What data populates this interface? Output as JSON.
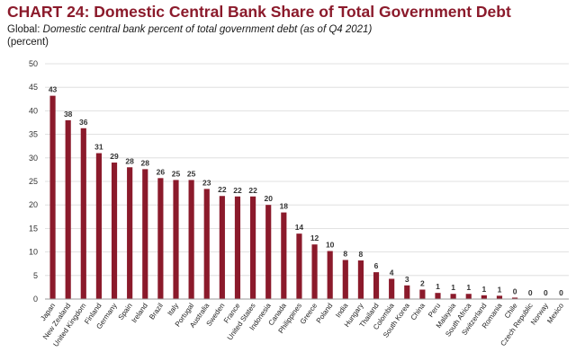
{
  "header": {
    "title": "CHART 24: Domestic Central Bank Share of Total Government Debt",
    "subtitle_prefix": "Global: ",
    "subtitle_italic": "Domestic central bank percent of total government debt (as of Q4 2021)",
    "unit": "(percent)"
  },
  "colors": {
    "bar": "#8b1a2b",
    "title": "#8b1a2b",
    "grid": "#d9d9d9"
  },
  "chart_data": {
    "type": "bar",
    "title": "CHART 24: Domestic Central Bank Share of Total Government Debt",
    "subtitle": "Global: Domestic central bank percent of total government debt (as of Q4 2021)",
    "ylabel": "(percent)",
    "xlabel": "",
    "ylim": [
      0,
      50
    ],
    "yticks": [
      0,
      5,
      10,
      15,
      20,
      25,
      30,
      35,
      40,
      45,
      50
    ],
    "grid": true,
    "legend": "none",
    "categories": [
      "Japan",
      "New Zealand",
      "United Kingdom",
      "Finland",
      "Germany",
      "Spain",
      "Ireland",
      "Brazil",
      "Italy",
      "Portugal",
      "Australia",
      "Sweden",
      "France",
      "United States",
      "Indonesia",
      "Canada",
      "Philippines",
      "Greece",
      "Poland",
      "India",
      "Hungary",
      "Thailand",
      "Colombia",
      "South Korea",
      "China",
      "Peru",
      "Malaysia",
      "South Africa",
      "Switzerland",
      "Romania",
      "Chile",
      "Czech Republic",
      "Norway",
      "Mexico"
    ],
    "values": [
      43.2,
      38,
      36.3,
      31,
      29,
      28,
      27.6,
      25.7,
      25.3,
      25.3,
      23.4,
      21.9,
      21.8,
      21.8,
      20,
      18.4,
      13.9,
      11.6,
      10.2,
      8.3,
      8.2,
      5.7,
      4.3,
      2.9,
      2,
      1.3,
      1.1,
      1.1,
      0.8,
      0.7,
      0.3,
      0,
      0,
      0
    ],
    "data_labels": [
      "43",
      "38",
      "36",
      "31",
      "29",
      "28",
      "28",
      "26",
      "25",
      "25",
      "23",
      "22",
      "22",
      "22",
      "20",
      "18",
      "14",
      "12",
      "10",
      "8",
      "8",
      "6",
      "4",
      "3",
      "2",
      "1",
      "1",
      "1",
      "1",
      "1",
      "0",
      "0",
      "0",
      "0"
    ]
  }
}
